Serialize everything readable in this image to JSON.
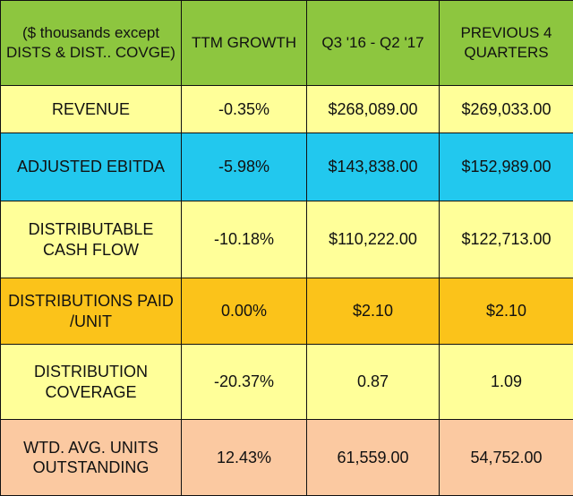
{
  "header": {
    "col1": "($ thousands except DISTS & DIST.. COVGE)",
    "col2": "TTM GROWTH",
    "col3": "Q3 '16 - Q2 '17",
    "col4": "PREVIOUS 4 QUARTERS"
  },
  "rows": [
    {
      "label": "REVENUE",
      "growth": "-0.35%",
      "current": "$268,089.00",
      "previous": "$269,033.00",
      "color": "#ffff99"
    },
    {
      "label": "ADJUSTED EBITDA",
      "growth": "-5.98%",
      "current": "$143,838.00",
      "previous": "$152,989.00",
      "color": "#22c8ee"
    },
    {
      "label": "DISTRIBUTABLE CASH FLOW",
      "growth": "-10.18%",
      "current": "$110,222.00",
      "previous": "$122,713.00",
      "color": "#ffff99"
    },
    {
      "label": "DISTRIBUTIONS PAID /UNIT",
      "growth": "0.00%",
      "current": "$2.10",
      "previous": "$2.10",
      "color": "#fbc31a"
    },
    {
      "label": "DISTRIBUTION COVERAGE",
      "growth": "-20.37%",
      "current": "0.87",
      "previous": "1.09",
      "color": "#ffff99"
    },
    {
      "label": "WTD. AVG.  UNITS OUTSTANDING",
      "growth": "12.43%",
      "current": "61,559.00",
      "previous": "54,752.00",
      "color": "#fbc9a1"
    }
  ]
}
